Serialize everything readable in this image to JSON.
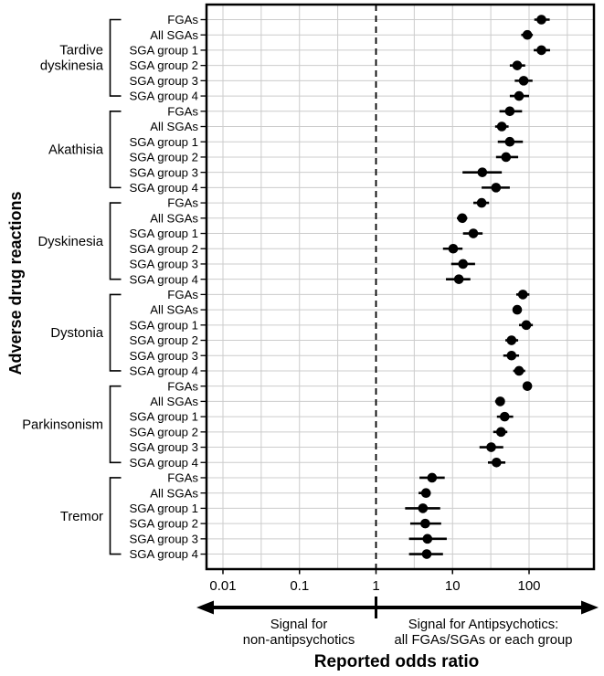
{
  "chart_data": {
    "type": "scatter",
    "subtype": "forest-plot",
    "title": "",
    "xlabel": "Reported odds ratio",
    "ylabel": "Adverse drug reactions",
    "x_scale": "log",
    "x_ticks": [
      0.01,
      0.1,
      1,
      10,
      100
    ],
    "x_tick_labels": [
      "0.01",
      "0.1",
      "1",
      "10",
      "100"
    ],
    "x_range": [
      0.006,
      705
    ],
    "gridlines_x": [
      0.01,
      0.0316,
      0.1,
      0.316,
      3.16,
      10,
      31.6,
      100,
      316
    ],
    "reference_line_x": 1,
    "grid": true,
    "legend": "none",
    "colors": {
      "point": "#000000",
      "grid": "#cccccc",
      "border": "#000000",
      "background": "#ffffff"
    },
    "groups": [
      {
        "label": "Tardive dyskinesia",
        "label_lines": [
          "Tardive",
          "dyskinesia"
        ],
        "rows": [
          {
            "label": "FGAs",
            "or": 145,
            "ci_low": 117,
            "ci_high": 186
          },
          {
            "label": "All SGAs",
            "or": 95,
            "ci_low": 79,
            "ci_high": 112
          },
          {
            "label": "SGA group 1",
            "or": 145,
            "ci_low": 115,
            "ci_high": 188
          },
          {
            "label": "SGA group 2",
            "or": 70,
            "ci_low": 56,
            "ci_high": 89
          },
          {
            "label": "SGA group 3",
            "or": 85,
            "ci_low": 65,
            "ci_high": 111
          },
          {
            "label": "SGA group 4",
            "or": 74,
            "ci_low": 56,
            "ci_high": 100
          }
        ]
      },
      {
        "label": "Akathisia",
        "label_lines": [
          "Akathisia"
        ],
        "rows": [
          {
            "label": "FGAs",
            "or": 56,
            "ci_low": 41,
            "ci_high": 81
          },
          {
            "label": "All SGAs",
            "or": 44,
            "ci_low": 36,
            "ci_high": 54
          },
          {
            "label": "SGA group 1",
            "or": 56,
            "ci_low": 39,
            "ci_high": 83
          },
          {
            "label": "SGA group 2",
            "or": 50,
            "ci_low": 37,
            "ci_high": 72
          },
          {
            "label": "SGA group 3",
            "or": 24.5,
            "ci_low": 13.5,
            "ci_high": 44
          },
          {
            "label": "SGA group 4",
            "or": 37,
            "ci_low": 24,
            "ci_high": 56
          }
        ]
      },
      {
        "label": "Dyskinesia",
        "label_lines": [
          "Dyskinesia"
        ],
        "rows": [
          {
            "label": "FGAs",
            "or": 24,
            "ci_low": 18.7,
            "ci_high": 30
          },
          {
            "label": "All SGAs",
            "or": 13.4,
            "ci_low": 11.4,
            "ci_high": 15.6
          },
          {
            "label": "SGA group 1",
            "or": 18.7,
            "ci_low": 13.7,
            "ci_high": 24.7
          },
          {
            "label": "SGA group 2",
            "or": 10.2,
            "ci_low": 7.5,
            "ci_high": 13.5
          },
          {
            "label": "SGA group 3",
            "or": 13.7,
            "ci_low": 9.6,
            "ci_high": 19.7
          },
          {
            "label": "SGA group 4",
            "or": 12.1,
            "ci_low": 8.2,
            "ci_high": 17.1
          }
        ]
      },
      {
        "label": "Dystonia",
        "label_lines": [
          "Dystonia"
        ],
        "rows": [
          {
            "label": "FGAs",
            "or": 83,
            "ci_low": 68,
            "ci_high": 101
          },
          {
            "label": "All SGAs",
            "or": 70,
            "ci_low": 61,
            "ci_high": 80
          },
          {
            "label": "SGA group 1",
            "or": 92,
            "ci_low": 74,
            "ci_high": 112
          },
          {
            "label": "SGA group 2",
            "or": 59,
            "ci_low": 49,
            "ci_high": 72
          },
          {
            "label": "SGA group 3",
            "or": 59,
            "ci_low": 46,
            "ci_high": 74
          },
          {
            "label": "SGA group 4",
            "or": 74,
            "ci_low": 62,
            "ci_high": 89
          }
        ]
      },
      {
        "label": "Parkinsonism",
        "label_lines": [
          "Parkinsonism"
        ],
        "rows": [
          {
            "label": "FGAs",
            "or": 95,
            "ci_low": 85,
            "ci_high": 107
          },
          {
            "label": "All SGAs",
            "or": 42,
            "ci_low": 36,
            "ci_high": 48
          },
          {
            "label": "SGA group 1",
            "or": 48,
            "ci_low": 38,
            "ci_high": 62
          },
          {
            "label": "SGA group 2",
            "or": 43,
            "ci_low": 34,
            "ci_high": 52
          },
          {
            "label": "SGA group 3",
            "or": 32,
            "ci_low": 22.5,
            "ci_high": 46
          },
          {
            "label": "SGA group 4",
            "or": 37.5,
            "ci_low": 29,
            "ci_high": 49
          }
        ]
      },
      {
        "label": "Tremor",
        "label_lines": [
          "Tremor"
        ],
        "rows": [
          {
            "label": "FGAs",
            "or": 5.4,
            "ci_low": 3.7,
            "ci_high": 7.9
          },
          {
            "label": "All SGAs",
            "or": 4.5,
            "ci_low": 3.6,
            "ci_high": 5.2
          },
          {
            "label": "SGA group 1",
            "or": 4.1,
            "ci_low": 2.4,
            "ci_high": 6.9
          },
          {
            "label": "SGA group 2",
            "or": 4.4,
            "ci_low": 2.8,
            "ci_high": 7.1
          },
          {
            "label": "SGA group 3",
            "or": 4.7,
            "ci_low": 2.7,
            "ci_high": 8.4
          },
          {
            "label": "SGA group 4",
            "or": 4.6,
            "ci_low": 2.7,
            "ci_high": 7.5
          }
        ]
      }
    ],
    "annotations": {
      "divider_at": 1,
      "left_label_lines": [
        "Signal for",
        "non-antipsychotics"
      ],
      "right_label_lines": [
        "Signal for Antipsychotics:",
        "all FGAs/SGAs or each group"
      ]
    }
  }
}
